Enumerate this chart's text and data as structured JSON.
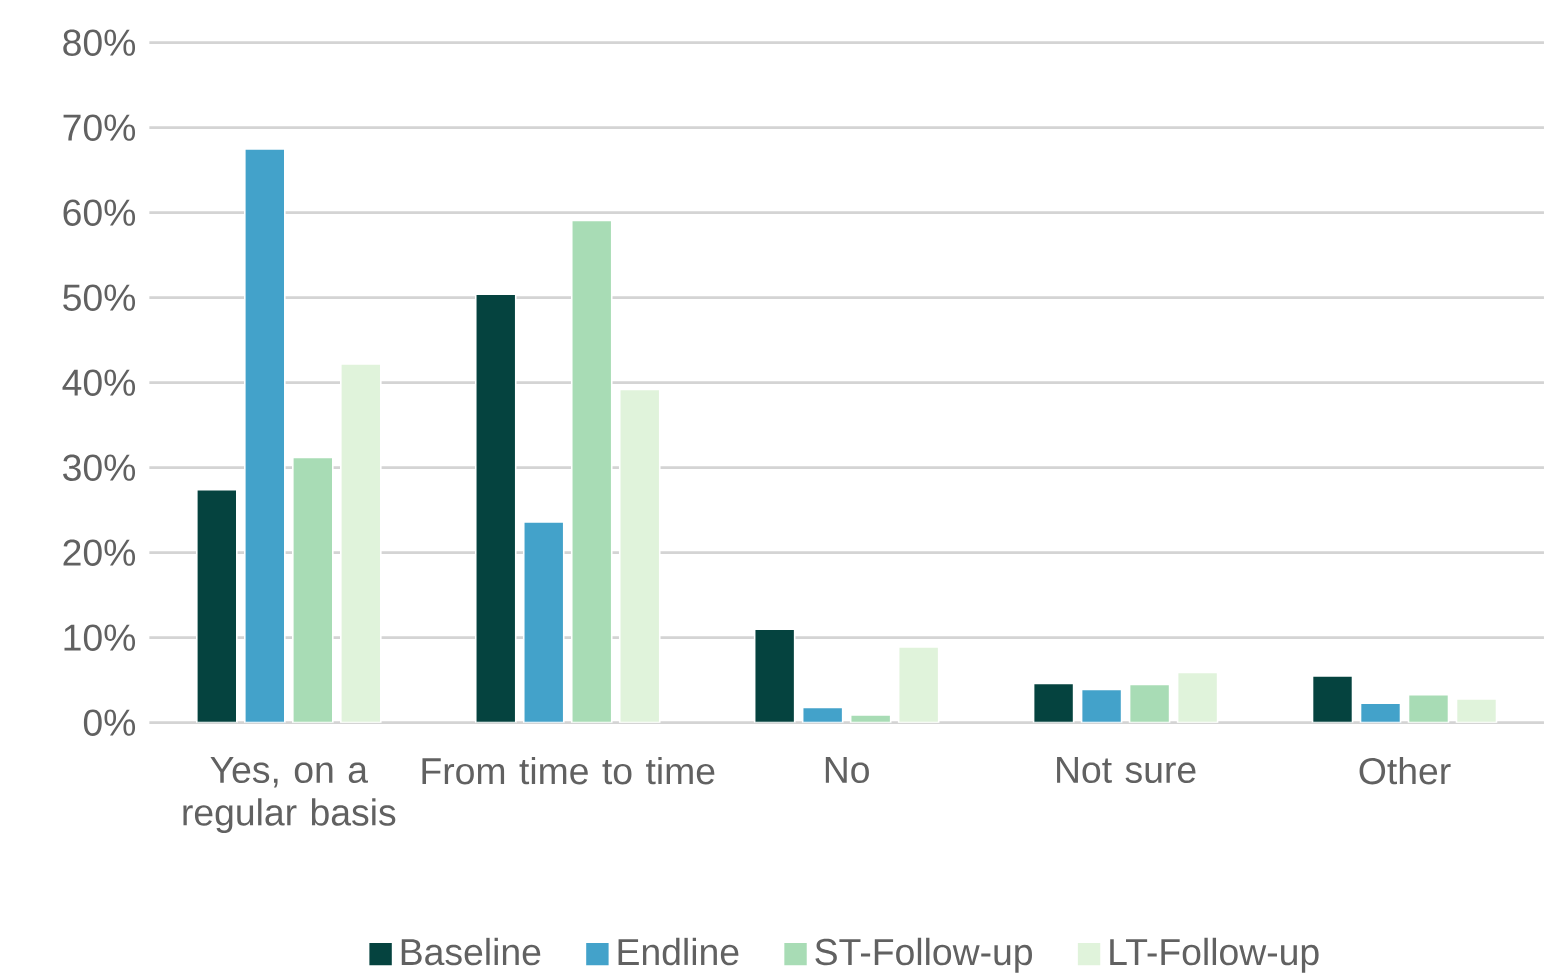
{
  "chart_data": {
    "type": "bar",
    "categories": [
      "Yes, on a regular basis",
      "From time to time",
      "No",
      "Not sure",
      "Other"
    ],
    "series": [
      {
        "name": "Baseline",
        "color": "#05433f",
        "values": [
          27.4,
          50.4,
          11.0,
          4.6,
          5.5
        ]
      },
      {
        "name": "Endline",
        "color": "#43a2ca",
        "values": [
          67.5,
          23.6,
          1.8,
          3.9,
          2.3
        ]
      },
      {
        "name": "ST-Follow-up",
        "color": "#a8dcb5",
        "values": [
          31.2,
          59.1,
          0.9,
          4.5,
          3.3
        ]
      },
      {
        "name": "LT-Follow-up",
        "color": "#e0f3db",
        "values": [
          42.2,
          39.2,
          8.9,
          5.9,
          2.8
        ]
      }
    ],
    "ylim": [
      0,
      80
    ],
    "yticks": [
      {
        "value": 0,
        "label": "0%"
      },
      {
        "value": 10,
        "label": "10%"
      },
      {
        "value": 20,
        "label": "20%"
      },
      {
        "value": 30,
        "label": "30%"
      },
      {
        "value": 40,
        "label": "40%"
      },
      {
        "value": 50,
        "label": "50%"
      },
      {
        "value": 60,
        "label": "60%"
      },
      {
        "value": 70,
        "label": "70%"
      },
      {
        "value": 80,
        "label": "80%"
      }
    ],
    "grid": "y",
    "legend": "bottom"
  }
}
